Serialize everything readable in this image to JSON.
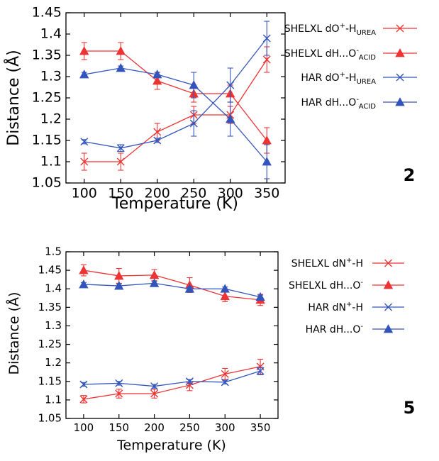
{
  "chart_data": [
    {
      "type": "line",
      "panel_label": "2",
      "xlabel": "Temperature (K)",
      "ylabel": "Distance (Å)",
      "x": [
        100,
        150,
        200,
        250,
        300,
        350
      ],
      "xlim": [
        75,
        375
      ],
      "ylim": [
        1.05,
        1.45
      ],
      "xticks": [
        "100",
        "150",
        "200",
        "250",
        "300",
        "350"
      ],
      "yticks": [
        "1.05",
        "1.1",
        "1.15",
        "1.2",
        "1.25",
        "1.3",
        "1.35",
        "1.4",
        "1.45"
      ],
      "grid": false,
      "legend_position": "right",
      "series": [
        {
          "legend": {
            "pre": "SHELXL dO",
            "sup": "+",
            "mid": "-H",
            "sub": "UREA",
            "post": ""
          },
          "color": "#ee3333",
          "marker": "x",
          "values": [
            1.1,
            1.1,
            1.17,
            1.21,
            1.21,
            1.34
          ],
          "errors": [
            0.02,
            0.02,
            0.02,
            0.02,
            0.02,
            0.03
          ]
        },
        {
          "legend": {
            "pre": "SHELXL dH...O",
            "sup": "-",
            "mid": "",
            "sub": "ACID",
            "post": ""
          },
          "color": "#ee3333",
          "marker": "triangle",
          "values": [
            1.36,
            1.36,
            1.29,
            1.26,
            1.26,
            1.15
          ],
          "errors": [
            0.02,
            0.02,
            0.02,
            0.02,
            0.02,
            0.03
          ]
        },
        {
          "legend": {
            "pre": "HAR dO",
            "sup": "+",
            "mid": "-H",
            "sub": "UREA",
            "post": ""
          },
          "color": "#3355bb",
          "marker": "x",
          "values": [
            1.147,
            1.132,
            1.15,
            1.19,
            1.28,
            1.39
          ],
          "errors": [
            0.005,
            0.008,
            0.005,
            0.03,
            0.04,
            0.04
          ]
        },
        {
          "legend": {
            "pre": "HAR dH...O",
            "sup": "-",
            "mid": "",
            "sub": "ACID",
            "post": ""
          },
          "color": "#3355bb",
          "marker": "triangle",
          "values": [
            1.305,
            1.32,
            1.305,
            1.28,
            1.2,
            1.1
          ],
          "errors": [
            0.005,
            0.005,
            0.005,
            0.03,
            0.04,
            0.04
          ]
        }
      ]
    },
    {
      "type": "line",
      "panel_label": "5",
      "xlabel": "Temperature (K)",
      "ylabel": "Distance (Å)",
      "x": [
        100,
        150,
        200,
        250,
        300,
        350
      ],
      "xlim": [
        75,
        375
      ],
      "ylim": [
        1.05,
        1.5
      ],
      "xticks": [
        "100",
        "150",
        "200",
        "250",
        "300",
        "350"
      ],
      "yticks": [
        "1.05",
        "1.1",
        "1.15",
        "1.2",
        "1.25",
        "1.3",
        "1.35",
        "1.4",
        "1.45",
        "1.5"
      ],
      "grid": false,
      "legend_position": "right",
      "series": [
        {
          "legend": {
            "pre": "SHELXL dN",
            "sup": "+",
            "mid": "-H",
            "sub": "",
            "post": ""
          },
          "color": "#ee3333",
          "marker": "x",
          "values": [
            1.102,
            1.117,
            1.117,
            1.14,
            1.17,
            1.19
          ],
          "errors": [
            0.01,
            0.012,
            0.012,
            0.015,
            0.015,
            0.02
          ]
        },
        {
          "legend": {
            "pre": "SHELXL dH...O",
            "sup": "-",
            "mid": "",
            "sub": "",
            "post": ""
          },
          "color": "#ee3333",
          "marker": "triangle",
          "values": [
            1.45,
            1.435,
            1.437,
            1.41,
            1.38,
            1.37
          ],
          "errors": [
            0.015,
            0.02,
            0.015,
            0.02,
            0.015,
            0.015
          ]
        },
        {
          "legend": {
            "pre": "HAR dN",
            "sup": "+",
            "mid": "-H",
            "sub": "",
            "post": ""
          },
          "color": "#3355bb",
          "marker": "x",
          "values": [
            1.142,
            1.145,
            1.137,
            1.15,
            1.148,
            1.178
          ],
          "errors": [
            0.005,
            0.005,
            0.005,
            0.005,
            0.005,
            0.01
          ]
        },
        {
          "legend": {
            "pre": "HAR dH...O",
            "sup": "-",
            "mid": "",
            "sub": "",
            "post": ""
          },
          "color": "#3355bb",
          "marker": "triangle",
          "values": [
            1.412,
            1.408,
            1.415,
            1.4,
            1.4,
            1.378
          ],
          "errors": [
            0.005,
            0.005,
            0.005,
            0.005,
            0.005,
            0.005
          ]
        }
      ]
    }
  ]
}
